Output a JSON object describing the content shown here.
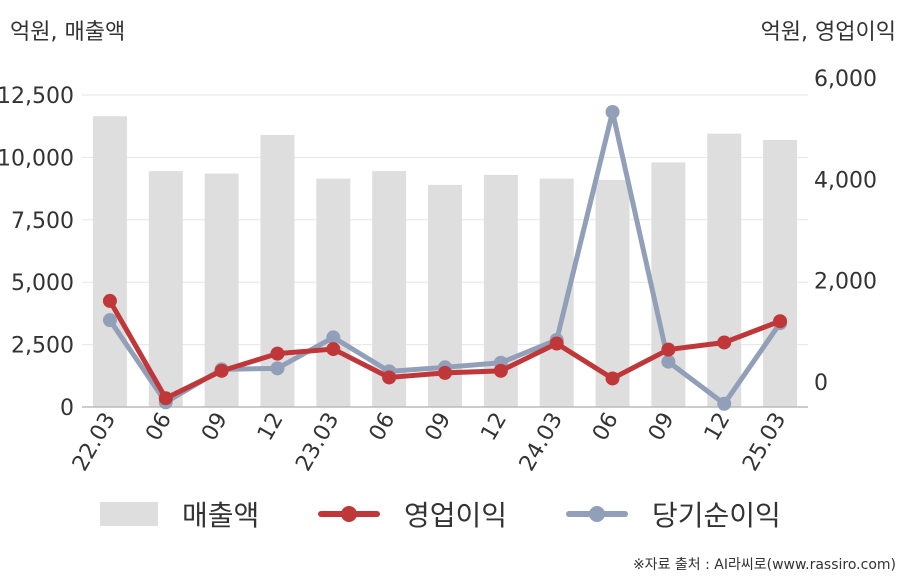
{
  "left_unit": "억원, 매출액",
  "right_unit": "억원, 영업이익",
  "source": "※자료 출처 : AI라씨로(www.rassiro.com)",
  "chart_data": {
    "type": "bar+line",
    "categories": [
      "22.03",
      "06",
      "09",
      "12",
      "23.03",
      "06",
      "09",
      "12",
      "24.03",
      "06",
      "09",
      "12",
      "25.03"
    ],
    "y_left": {
      "ticks": [
        "0",
        "2,500",
        "5,000",
        "7,500",
        "10,000",
        "12,500"
      ],
      "range": [
        0,
        12500
      ]
    },
    "y_right": {
      "ticks": [
        "0",
        "2,000",
        "4,000",
        "6,000"
      ],
      "range": [
        -500,
        6000
      ]
    },
    "series": [
      {
        "name": "매출액",
        "type": "bar",
        "axis": "left",
        "color": "#dedede",
        "values": [
          11650,
          9450,
          9350,
          10900,
          9150,
          9450,
          8900,
          9300,
          9150,
          9100,
          9800,
          10950,
          10700
        ]
      },
      {
        "name": "영업이익",
        "type": "line",
        "axis": "right",
        "color": "#c0373a",
        "values": [
          1600,
          -320,
          220,
          560,
          650,
          90,
          180,
          220,
          760,
          70,
          640,
          780,
          1200
        ]
      },
      {
        "name": "당기순이익",
        "type": "line",
        "axis": "right",
        "color": "#929fb8",
        "values": [
          1220,
          -400,
          250,
          270,
          880,
          210,
          290,
          380,
          830,
          5330,
          400,
          -430,
          1160
        ]
      }
    ]
  }
}
